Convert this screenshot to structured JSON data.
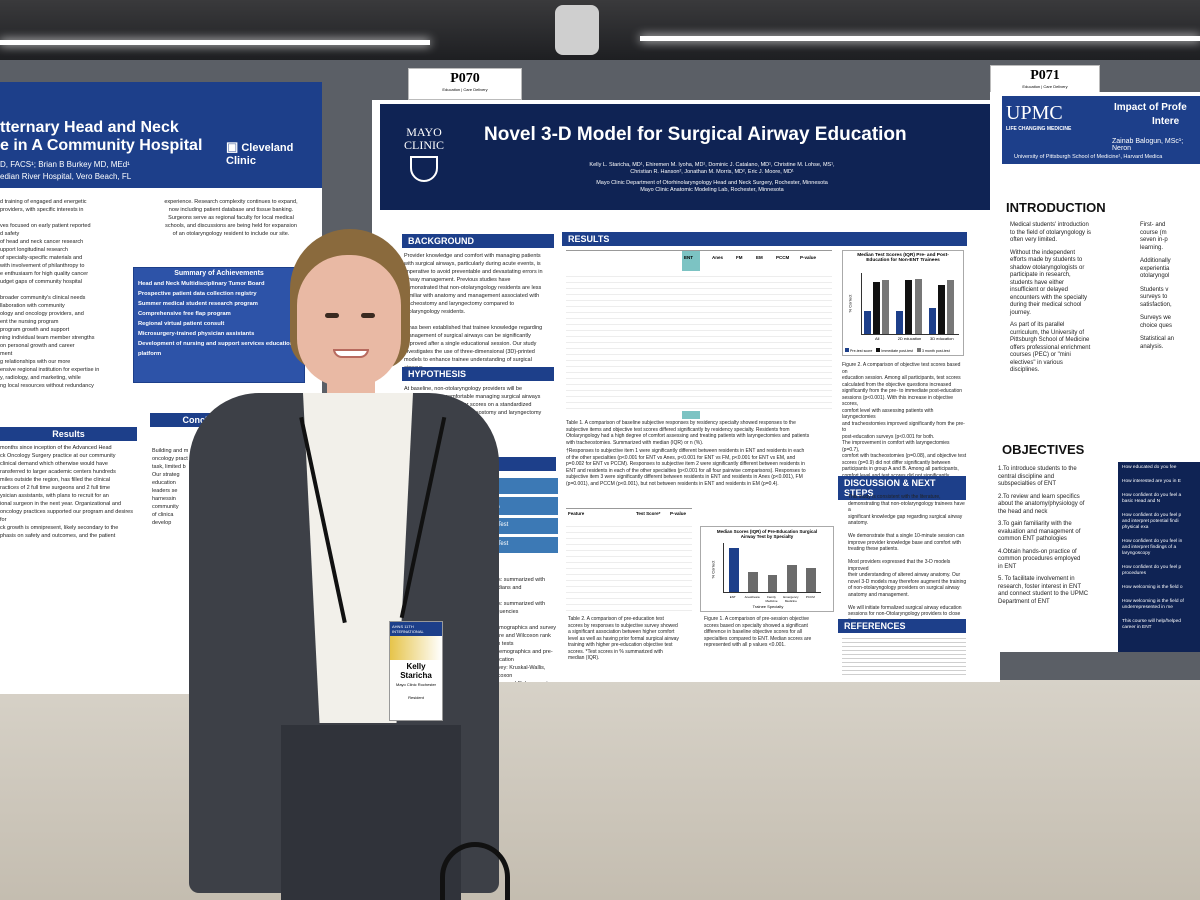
{
  "tags": {
    "left": {
      "code": "P070",
      "sub": "Education | Care Delivery"
    },
    "right": {
      "code": "P071",
      "sub": "Education | Care Delivery"
    }
  },
  "left_poster": {
    "title_lines": [
      "tternary Head and Neck",
      "e in A Community Hospital"
    ],
    "authors": "D, FACS¹; Brian B Burkey MD, MEd¹",
    "affil": "edian River Hospital, Vero Beach, FL",
    "logo": "Cleveland Clinic",
    "body": "d training of engaged and energetic\n providers, with specific interests in\n\nves focused on early patient reported\nd safety\nof head and neck cancer research\nupport longitudinal research\nof specialty-specific materials and\nwith involvement of philanthropy to\ne enthusiasm for high quality cancer\nudget gaps of community hospital\n\nbroader community's clinical needs\nllaboration with community\nology and oncology providers, and\nent the nursing program\nprogram growth and support\nning individual team member strengths\non personal growth and career\nment\ng relationships with our more\nensive regional institution for expertise in\ny, radiology, and marketing, while\nng local resources without redundancy",
    "right_col": "experience. Research complexity continues to expand,\nnow including patient database and tissue banking.\nSurgeons serve as regional faculty for local medical\nschools, and discussions are being held for expansion\nof an otolaryngology resident to include our site.",
    "achievements_title": "Summary of Achievements",
    "achievements": [
      "Head and Neck Multidisciplinary Tumor Board",
      "Prospective patient data collection registry",
      "Summer medical student research program",
      "Comprehensive free flap program",
      "Regional virtual patient consult",
      "Microsurgery-trained physician assistants",
      "Development of nursing and support services educational platform"
    ],
    "results_label": "Results",
    "conclusion_label": "Conclusion",
    "results_text": "months since inception of the Advanced Head\nck Oncology Surgery practice at our community\nclinical demand which otherwise would have\nransferred to larger academic centers hundreds\nmiles outside the region, has filled the clinical\nractices of 2 full time surgeons and 2 full time\nysician assistants, with plans to recruit for an\nional surgeon in the next year. Organizational and\noncology practices supported our program and desires for\nck growth is omnipresent, likely secondary to the\nphasis on safety and outcomes, and the patient",
    "conclusion_text": "Building and m\noncology pract\ntask, limited b\nOur strateg\neducation\nleaders se\nharnessin\ncommunity\nof clinica\ndevelop"
  },
  "center_poster": {
    "logo": "MAYO CLINIC",
    "title": "Novel 3-D Model for Surgical Airway Education",
    "authors": "Kelly L. Staricha, MD¹, Ehiremen M. Iyoha, MD¹, Dominic J. Catalano, MD¹, Christine M. Lohse, MS¹,\nChristian R. Hanson², Jonathan M. Morris, MD², Eric J. Moore, MD¹",
    "affil": "Mayo Clinic Department of Otorhinolaryngology Head and Neck Surgery, Rochester, Minnesota\nMayo Clinic Anatomic Modeling Lab, Rochester, Minnesota",
    "background_title": "BACKGROUND",
    "background_text": "Provider knowledge and comfort with managing patients\nwith surgical airways, particularly during acute events, is\nimperative to avoid preventable and devastating errors in\nairway management. Previous studies have\ndemonstrated that non-otolaryngology residents are less\nfamiliar with anatomy and management associated with\ntracheostomy and laryngectomy compared to\notolaryngology residents.\n\nIt has been established that trainee knowledge regarding\nmanagement of surgical airways can be significantly\nimproved after a single educational session. Our study\ninvestigates the use of three-dimensional (3D)-printed\nmodels to enhance trainee understanding of surgical\nairways.",
    "hypothesis_title": "HYPOTHESIS",
    "hypothesis_text": "At baseline, non-otolaryngology providers will be\nsubjectively less comfortable managing surgical airways\nand have objectively lower scores on a standardized\nquestionnaire regarding tracheostomy and laryngectomy\nanatomy.\n\nObjective measures will improve\nore in the 3D airway education group\n2D education group",
    "methods_label": "DS",
    "flow_steps": [
      "Pre-Test",
      "Group A: 2D Slide\nGroup B: 3D Model",
      "ttement & Post-Test",
      "ttement & Post-Test"
    ],
    "methods_text": "ures: summarized with medians and\n\nures: summarized with frequencies\n\nf demographics and survey\nquare and Wilcoxon rank sum tests\nof demographics and pre-education\nsurvey: Kruskal-Wallis, Wilcoxon\nquare, and Fisher exact tests\nsurvey responses: signed rank tests\nsurvey responses by residency\nns of objective scores by\nective: Spearman rank correlation\nWilcoxon rank sum tests\nP-values <0.05 statistically",
    "results_title": "RESULTS",
    "table1_head": [
      "ENT",
      "Anes",
      "FM",
      "EM",
      "PCCM",
      "P-value"
    ],
    "table1_caption": "Table 1. A comparison of baseline subjective responses by residency specialty showed responses to the\nsubjective items and objective test scores differed significantly by residency specialty. Residents from\nOtolaryngology had a high degree of comfort assessing and treating patients with laryngectomies and patients\nwith tracheostomies. Summarized with median (IQR) or n (%).",
    "table1_note": "†Responses to subjective item 1 were significantly different between residents in ENT and residents in each\nof the other specialties (p<0.001 for ENT vs Anes, p<0.001 for ENT vs FM, p<0.001 for ENT vs EM, and\np=0.002 for ENT vs PCCM). Responses to subjective item 2 were significantly different between residents in\nENT and residents in each of the other specialties (p<0.001 for all four pairwise comparisons). Responses to\nsubjective item 3 were significantly different between residents in ENT and residents in Anes (p<0.001), FM\n(p=0.001), and PCCM (p<0.001), but not between residents in ENT and residents in EM (p=0.4).",
    "table2_head": [
      "Feature",
      "Test Score*",
      "P-value"
    ],
    "table2_caption": "Table 2. A comparison of pre-education test\nscores by responses to subjective survey showed\na significant association between higher comfort\nlevel as well as having prior formal surgical airway\ntraining with higher pre-education objective test\nscores. *Test scores in % summarized with\nmedian (IQR).",
    "fig1_caption": "Figure 1. A comparison of pre-session objective\nscores based on specialty showed a significant\ndifference in baseline objective scores for all\nspecialties compared to ENT. Median scores are\nrepresented with all p values <0.001.",
    "fig2_caption": "Figure 2. A comparison of objective test scores based on\neducation session. Among all participants, test scores\ncalculated from the objective questions increased\nsignificantly from the pre- to immediate post-education\nsessions (p<0.001). With this increase in objective scores,\ncomfort level with assessing patients with laryngectomies\nand tracheostomies improved significantly from the pre- to\npost-education surveys (p<0.001 for both.\nThe improvement in comfort with laryngectomies (p=0.7),\ncomfort with tracheostomies (p=0.08), and objective test\nscores (p=0.9) did not differ significantly between\nparticipants in group A and B. Among all participants,\ncomfort level and test scores did not significantly change\nfrom the immediate post- to the 3-month post-education\nsurveys.",
    "discussion_title": "DISCUSSION & NEXT STEPS",
    "discussion_text": "This study is consistent with the literature,\ndemonstrating that non-otolaryngology trainees have a\nsignificant knowledge gap regarding surgical airway\nanatomy.\n\nWe demonstrate that a single 10-minute session can\nimprove provider knowledge base and comfort with\ntreating these patients.\n\nMost providers expressed that the 3-D models improved\ntheir understanding of altered airway anatomy. Our\nnovel 3-D models may therefore augment the training\nof non-otolaryngology providers on surgical airway\nanatomy and management.\n\nWe will initiate formalized surgical airway education\nsessions for non-Otolaryngology providers to close the\nidentified knowledge gap and enhance patient safety.",
    "references_title": "REFERENCES"
  },
  "chart_data": [
    {
      "type": "bar",
      "title": "Median Test Scores (IQR) Pre- and Post-Education for Non-ENT Trainees",
      "ylabel": "% Correct",
      "categories": [
        "All",
        "2D education",
        "3D education"
      ],
      "legend": [
        "Pre-test score",
        "Immediate post-test",
        "3 month post-test"
      ],
      "series": [
        {
          "name": "Pre-test score",
          "values": [
            38,
            38,
            42
          ]
        },
        {
          "name": "Immediate post-test",
          "values": [
            85,
            88,
            80
          ]
        },
        {
          "name": "3 month post-test",
          "values": [
            88,
            90,
            88
          ]
        }
      ],
      "colors": [
        "#1d3f8a",
        "#111111",
        "#777777"
      ],
      "ylim": [
        0,
        100
      ]
    },
    {
      "type": "bar",
      "title": "Median Scores (IQR) of Pre-Education Surgical Airway Test by Specialty",
      "ylabel": "% Correct",
      "xlabel": "Trainee Specialty",
      "categories": [
        "ENT",
        "Anesthesia",
        "Family Medicine",
        "Emergency Medicine",
        "PCCM"
      ],
      "values": [
        90,
        40,
        35,
        55,
        50
      ],
      "ylim": [
        0,
        100
      ],
      "colors": [
        "#1d3f8a",
        "#6b6b6b"
      ]
    }
  ],
  "right_poster": {
    "logo": "UPMC",
    "logo_sub": "LIFE CHANGING MEDICINE",
    "title_lines": [
      "Impact of Profe",
      "Intere"
    ],
    "authors": "Zainab Balogun, MSc¹; Neron",
    "affil": "University of Pittsburgh School of Medicine¹, Harvard Medica",
    "intro_title": "INTRODUCTION",
    "intro_items": [
      "Medical students' introduction\nto the field of otolaryngology is\noften very limited.",
      "Without the independent\nefforts made by students to\nshadow otolaryngologists or\nparticipate in research,\nstudents have either\ninsufficient or delayed\nencounters with the specialty\nduring their medical school\njourney.",
      "As part of its parallel\ncurriculum, the University of\nPittsburgh School of Medicine\noffers professional enrichment\ncourses (PEC) or \"mini\nelectives\" in various\ndisciplines."
    ],
    "col2_items": [
      "First- and\ncourse (m\nseven in-p\nlearning.",
      "Additionally\nexperientia\notolaryngol",
      "Students v\nsurveys to\nsatisfaction,",
      "Surveys we\nchoice ques",
      "Statistical an\nanalysis."
    ],
    "objectives_title": "OBJECTIVES",
    "objectives": [
      "1.To introduce students to the\ncentral discipline and\nsubspecialties of ENT",
      "2.To review and learn specifics\nabout the anatomy/physiology of\nthe head and neck",
      "3.To gain familiarity with the\nevaluation and management of\ncommon ENT pathologies",
      "4.Obtain hands-on practice of\ncommon procedures employed\nin ENT",
      "5. To facilitate involvement in\nresearch, foster interest in ENT\nand connect student to the UPMC\nDepartment of ENT"
    ],
    "questions": [
      "How educated do you fee",
      "How interested are you in E",
      "How confident do you feel a\nbasic Head and N",
      "How confident do you feel p\nand interpret potential findi\nphysical exa",
      "How confident do you feel in\nand interpret findings of a\nlaryngoscopy",
      "How confident do you feel p\nprocedures",
      "How welcoming is the field o",
      "How welcoming is the field of\nunderrepresented in me",
      "This course will help/helped\ncareer in ENT"
    ]
  },
  "badge": {
    "event": "AHNS 11TH INTERNATIONAL",
    "first": "Kelly",
    "last": "Staricha",
    "org": "Mayo Clinic Rochester",
    "role": "Resident"
  }
}
